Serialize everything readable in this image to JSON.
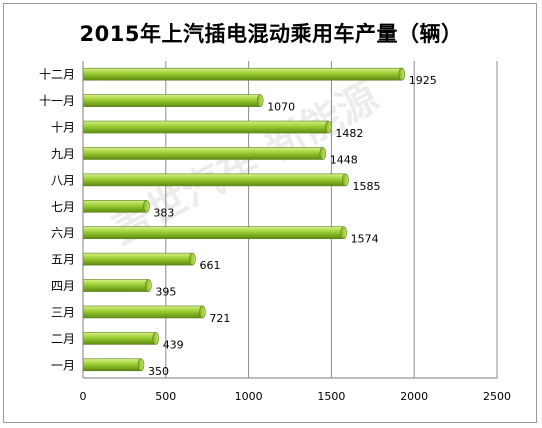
{
  "chart_data": {
    "type": "bar",
    "orientation": "horizontal",
    "title": "2015年上汽插电混动乘用车产量（辆）",
    "categories": [
      "一月",
      "二月",
      "三月",
      "四月",
      "五月",
      "六月",
      "七月",
      "八月",
      "九月",
      "十月",
      "十一月",
      "十二月"
    ],
    "values": [
      350,
      439,
      721,
      395,
      661,
      1574,
      383,
      1585,
      1448,
      1482,
      1070,
      1925
    ],
    "x_ticks": [
      0,
      500,
      1000,
      1500,
      2000,
      2500
    ],
    "xlim": [
      0,
      2500
    ],
    "xlabel": "",
    "ylabel": "",
    "grid": "vertical",
    "legend": "none",
    "bar_color": "#9ACD32",
    "watermark": "盖世汽车·新能源"
  }
}
